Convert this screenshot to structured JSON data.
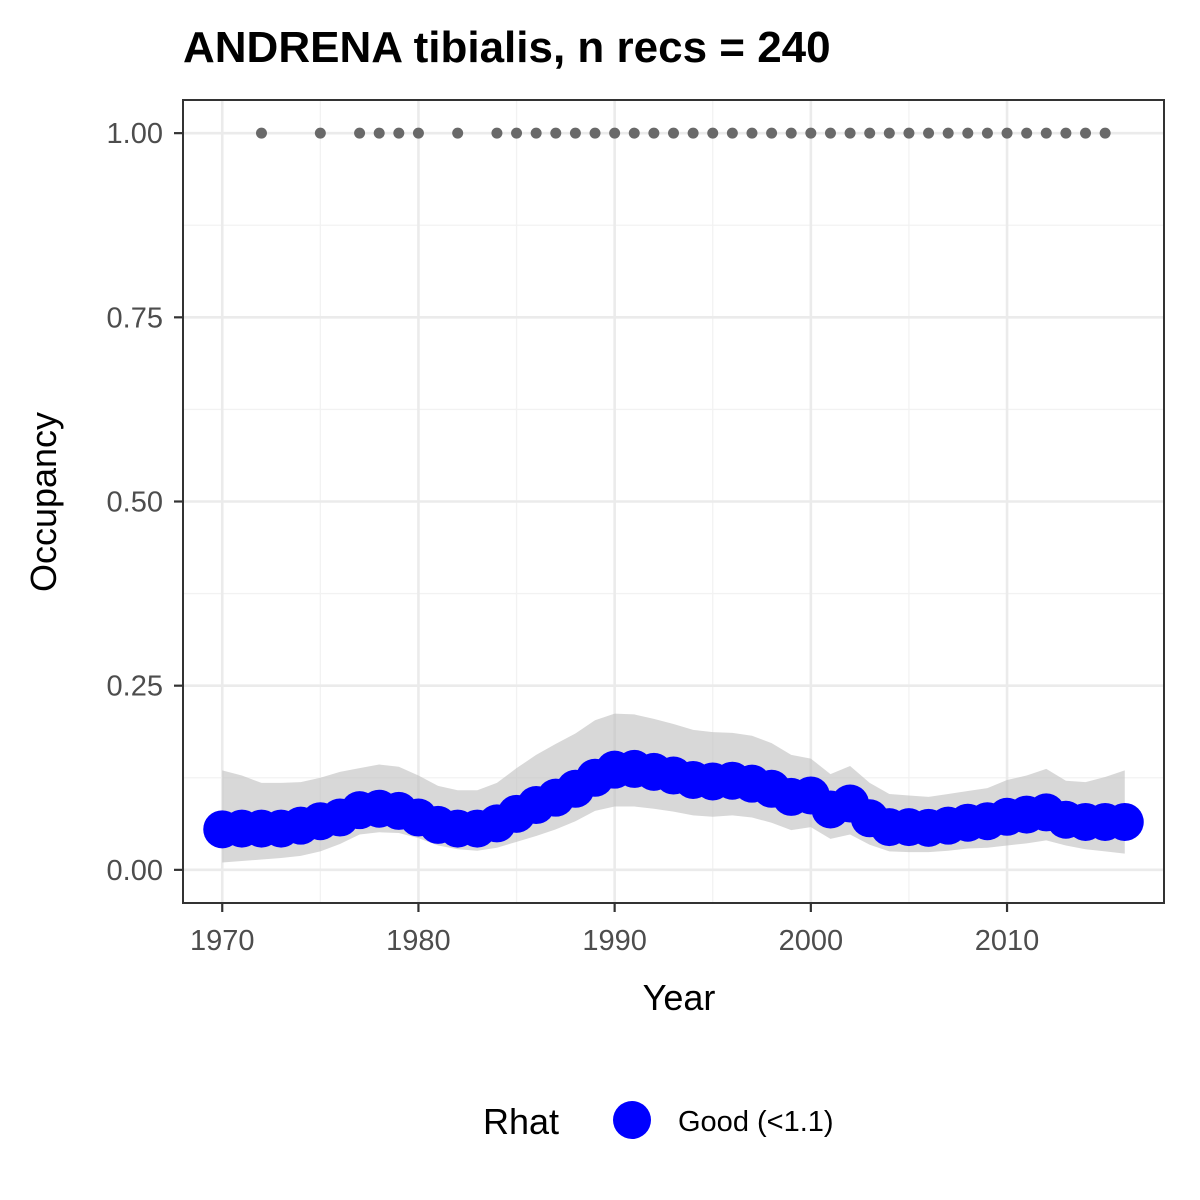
{
  "chart_data": {
    "type": "line",
    "title": "ANDRENA tibialis, n recs = 240",
    "xlabel": "Year",
    "ylabel": "Occupancy",
    "xlim": [
      1968,
      2018
    ],
    "ylim": [
      -0.045,
      1.045
    ],
    "x_ticks": [
      1970,
      1980,
      1990,
      2000,
      2010
    ],
    "x_tick_labels": [
      "1970",
      "1980",
      "1990",
      "2000",
      "2010"
    ],
    "y_ticks": [
      0,
      0.25,
      0.5,
      0.75,
      1.0
    ],
    "y_tick_labels": [
      "0.00",
      "0.25",
      "0.50",
      "0.75",
      "1.00"
    ],
    "grid": true,
    "legend": {
      "title": "Rhat",
      "position": "bottom",
      "entries": [
        {
          "label": "Good (<1.1)",
          "color": "#0000ff"
        }
      ]
    },
    "series": [
      {
        "name": "Good (<1.1)",
        "color": "#0000ff",
        "x": [
          1970,
          1971,
          1972,
          1973,
          1974,
          1975,
          1976,
          1977,
          1978,
          1979,
          1980,
          1981,
          1982,
          1983,
          1984,
          1985,
          1986,
          1987,
          1988,
          1989,
          1990,
          1991,
          1992,
          1993,
          1994,
          1995,
          1996,
          1997,
          1998,
          1999,
          2000,
          2001,
          2002,
          2003,
          2004,
          2005,
          2006,
          2007,
          2008,
          2009,
          2010,
          2011,
          2012,
          2013,
          2014,
          2015,
          2016
        ],
        "y": [
          0.055,
          0.056,
          0.056,
          0.056,
          0.06,
          0.066,
          0.071,
          0.081,
          0.083,
          0.08,
          0.071,
          0.061,
          0.056,
          0.056,
          0.063,
          0.076,
          0.088,
          0.098,
          0.11,
          0.125,
          0.136,
          0.137,
          0.133,
          0.128,
          0.122,
          0.12,
          0.121,
          0.117,
          0.11,
          0.099,
          0.101,
          0.082,
          0.09,
          0.07,
          0.058,
          0.058,
          0.057,
          0.06,
          0.064,
          0.066,
          0.072,
          0.075,
          0.078,
          0.068,
          0.065,
          0.065,
          0.065
        ],
        "lower": [
          0.01,
          0.012,
          0.014,
          0.016,
          0.019,
          0.025,
          0.035,
          0.048,
          0.051,
          0.05,
          0.043,
          0.033,
          0.028,
          0.026,
          0.03,
          0.038,
          0.046,
          0.055,
          0.066,
          0.08,
          0.086,
          0.086,
          0.083,
          0.079,
          0.074,
          0.072,
          0.074,
          0.071,
          0.064,
          0.054,
          0.058,
          0.042,
          0.048,
          0.034,
          0.025,
          0.024,
          0.024,
          0.026,
          0.029,
          0.03,
          0.033,
          0.036,
          0.04,
          0.033,
          0.028,
          0.025,
          0.022
        ],
        "upper": [
          0.135,
          0.128,
          0.118,
          0.118,
          0.119,
          0.125,
          0.133,
          0.138,
          0.143,
          0.14,
          0.128,
          0.114,
          0.108,
          0.108,
          0.118,
          0.138,
          0.156,
          0.171,
          0.185,
          0.203,
          0.212,
          0.211,
          0.205,
          0.198,
          0.19,
          0.187,
          0.186,
          0.182,
          0.172,
          0.156,
          0.151,
          0.13,
          0.141,
          0.118,
          0.103,
          0.101,
          0.099,
          0.103,
          0.107,
          0.111,
          0.122,
          0.128,
          0.137,
          0.121,
          0.119,
          0.126,
          0.135
        ]
      },
      {
        "name": "records",
        "color": "#696969",
        "x": [
          1972,
          1975,
          1977,
          1978,
          1979,
          1980,
          1982,
          1984,
          1985,
          1986,
          1987,
          1988,
          1989,
          1990,
          1991,
          1992,
          1993,
          1994,
          1995,
          1996,
          1997,
          1998,
          1999,
          2000,
          2001,
          2002,
          2003,
          2004,
          2005,
          2006,
          2007,
          2008,
          2009,
          2010,
          2011,
          2012,
          2013,
          2014,
          2015
        ],
        "y": [
          1,
          1,
          1,
          1,
          1,
          1,
          1,
          1,
          1,
          1,
          1,
          1,
          1,
          1,
          1,
          1,
          1,
          1,
          1,
          1,
          1,
          1,
          1,
          1,
          1,
          1,
          1,
          1,
          1,
          1,
          1,
          1,
          1,
          1,
          1,
          1,
          1,
          1,
          1
        ]
      }
    ]
  }
}
